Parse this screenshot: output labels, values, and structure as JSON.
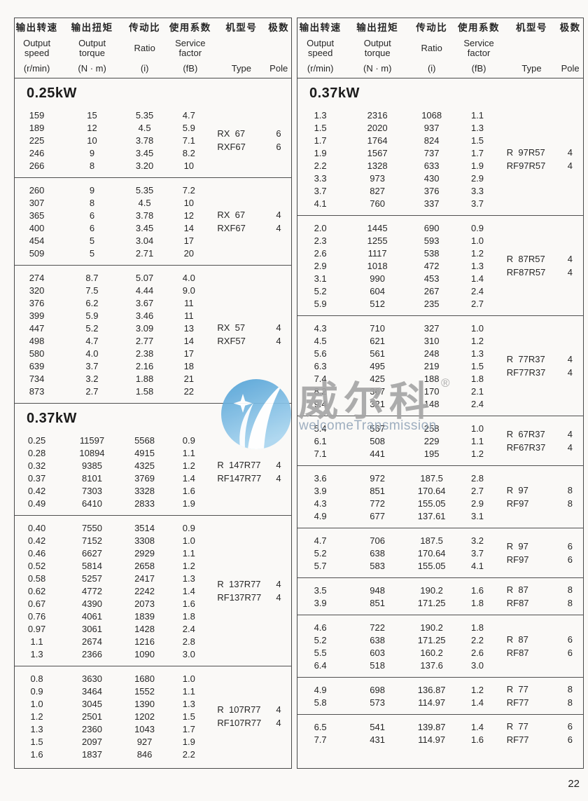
{
  "page_number": "22",
  "watermark": {
    "brand_cn": "威尔科",
    "reg_mark": "®",
    "brand_en": "welcomeTransmission",
    "circle_color_top": "#4d9fd5",
    "circle_color_bottom": "#aad6f0",
    "cn_text_color": "#a6a6a6",
    "en_text_color": "#97a8bb"
  },
  "header": {
    "columns": [
      {
        "cn": "输出转速",
        "en": [
          "Output",
          "speed"
        ],
        "unit": "(r/min)"
      },
      {
        "cn": "输出扭矩",
        "en": [
          "Output",
          "torque"
        ],
        "unit": "(N · m)"
      },
      {
        "cn": "传动比",
        "en": [
          "Ratio"
        ],
        "unit": "(i)"
      },
      {
        "cn": "使用系数",
        "en": [
          "Service",
          "factor"
        ],
        "unit": "(fB)"
      },
      {
        "cn": "机型号",
        "en": [],
        "unit": "Type"
      },
      {
        "cn": "极数",
        "en": [],
        "unit": "Pole"
      }
    ]
  },
  "left_table": {
    "sections": [
      {
        "title": "0.25kW",
        "blocks": [
          {
            "rows": [
              [
                "159",
                "15",
                "5.35",
                "4.7"
              ],
              [
                "189",
                "12",
                "4.5",
                "5.9"
              ],
              [
                "225",
                "10",
                "3.78",
                "7.1"
              ],
              [
                "246",
                "9",
                "3.45",
                "8.2"
              ],
              [
                "266",
                "8",
                "3.20",
                "10"
              ]
            ],
            "types": [
              [
                "RX  67",
                "6"
              ],
              [
                "RXF67",
                "6"
              ]
            ]
          },
          {
            "rows": [
              [
                "260",
                "9",
                "5.35",
                "7.2"
              ],
              [
                "307",
                "8",
                "4.5",
                "10"
              ],
              [
                "365",
                "6",
                "3.78",
                "12"
              ],
              [
                "400",
                "6",
                "3.45",
                "14"
              ],
              [
                "454",
                "5",
                "3.04",
                "17"
              ],
              [
                "509",
                "5",
                "2.71",
                "20"
              ]
            ],
            "types": [
              [
                "RX  67",
                "4"
              ],
              [
                "RXF67",
                "4"
              ]
            ]
          },
          {
            "rows": [
              [
                "274",
                "8.7",
                "5.07",
                "4.0"
              ],
              [
                "320",
                "7.5",
                "4.44",
                "9.0"
              ],
              [
                "376",
                "6.2",
                "3.67",
                "11"
              ],
              [
                "399",
                "5.9",
                "3.46",
                "11"
              ],
              [
                "447",
                "5.2",
                "3.09",
                "13"
              ],
              [
                "498",
                "4.7",
                "2.77",
                "14"
              ],
              [
                "580",
                "4.0",
                "2.38",
                "17"
              ],
              [
                "639",
                "3.7",
                "2.16",
                "18"
              ],
              [
                "734",
                "3.2",
                "1.88",
                "21"
              ],
              [
                "873",
                "2.7",
                "1.58",
                "22"
              ]
            ],
            "types": [
              [
                "RX  57",
                "4"
              ],
              [
                "RXF57",
                "4"
              ]
            ]
          }
        ]
      },
      {
        "title": "0.37kW",
        "blocks": [
          {
            "rows": [
              [
                "0.25",
                "11597",
                "5568",
                "0.9"
              ],
              [
                "0.28",
                "10894",
                "4915",
                "1.1"
              ],
              [
                "0.32",
                "9385",
                "4325",
                "1.2"
              ],
              [
                "0.37",
                "8101",
                "3769",
                "1.4"
              ],
              [
                "0.42",
                "7303",
                "3328",
                "1.6"
              ],
              [
                "0.49",
                "6410",
                "2833",
                "1.9"
              ]
            ],
            "types": [
              [
                "R  147R77",
                "4"
              ],
              [
                "RF147R77",
                "4"
              ]
            ]
          },
          {
            "rows": [
              [
                "0.40",
                "7550",
                "3514",
                "0.9"
              ],
              [
                "0.42",
                "7152",
                "3308",
                "1.0"
              ],
              [
                "0.46",
                "6627",
                "2929",
                "1.1"
              ],
              [
                "0.52",
                "5814",
                "2658",
                "1.2"
              ],
              [
                "0.58",
                "5257",
                "2417",
                "1.3"
              ],
              [
                "0.62",
                "4772",
                "2242",
                "1.4"
              ],
              [
                "0.67",
                "4390",
                "2073",
                "1.6"
              ],
              [
                "0.76",
                "4061",
                "1839",
                "1.8"
              ],
              [
                "0.97",
                "3061",
                "1428",
                "2.4"
              ],
              [
                "1.1",
                "2674",
                "1216",
                "2.8"
              ],
              [
                "1.3",
                "2366",
                "1090",
                "3.0"
              ]
            ],
            "types": [
              [
                "R  137R77",
                "4"
              ],
              [
                "RF137R77",
                "4"
              ]
            ]
          },
          {
            "rows": [
              [
                "0.8",
                "3630",
                "1680",
                "1.0"
              ],
              [
                "0.9",
                "3464",
                "1552",
                "1.1"
              ],
              [
                "1.0",
                "3045",
                "1390",
                "1.3"
              ],
              [
                "1.2",
                "2501",
                "1202",
                "1.5"
              ],
              [
                "1.3",
                "2360",
                "1043",
                "1.7"
              ],
              [
                "1.5",
                "2097",
                "927",
                "1.9"
              ],
              [
                "1.6",
                "1837",
                "846",
                "2.2"
              ]
            ],
            "types": [
              [
                "R  107R77",
                "4"
              ],
              [
                "RF107R77",
                "4"
              ]
            ]
          }
        ]
      }
    ]
  },
  "right_table": {
    "sections": [
      {
        "title": "0.37kW",
        "blocks": [
          {
            "rows": [
              [
                "1.3",
                "2316",
                "1068",
                "1.1"
              ],
              [
                "1.5",
                "2020",
                "937",
                "1.3"
              ],
              [
                "1.7",
                "1764",
                "824",
                "1.5"
              ],
              [
                "1.9",
                "1567",
                "737",
                "1.7"
              ],
              [
                "2.2",
                "1328",
                "633",
                "1.9"
              ],
              [
                "3.3",
                "973",
                "430",
                "2.9"
              ],
              [
                "3.7",
                "827",
                "376",
                "3.3"
              ],
              [
                "4.1",
                "760",
                "337",
                "3.7"
              ]
            ],
            "types": [
              [
                "R  97R57",
                "4"
              ],
              [
                "RF97R57",
                "4"
              ]
            ]
          },
          {
            "rows": [
              [
                "2.0",
                "1445",
                "690",
                "0.9"
              ],
              [
                "2.3",
                "1255",
                "593",
                "1.0"
              ],
              [
                "2.6",
                "1117",
                "538",
                "1.2"
              ],
              [
                "2.9",
                "1018",
                "472",
                "1.3"
              ],
              [
                "3.1",
                "990",
                "453",
                "1.4"
              ],
              [
                "5.2",
                "604",
                "267",
                "2.4"
              ],
              [
                "5.9",
                "512",
                "235",
                "2.7"
              ]
            ],
            "types": [
              [
                "R  87R57",
                "4"
              ],
              [
                "RF87R57",
                "4"
              ]
            ]
          },
          {
            "rows": [
              [
                "4.3",
                "710",
                "327",
                "1.0"
              ],
              [
                "4.5",
                "621",
                "310",
                "1.2"
              ],
              [
                "5.6",
                "561",
                "248",
                "1.3"
              ],
              [
                "6.3",
                "495",
                "219",
                "1.5"
              ],
              [
                "7.4",
                "425",
                "188",
                "1.8"
              ],
              [
                "8.2",
                "367",
                "170",
                "2.1"
              ],
              [
                "9.4",
                "321",
                "148",
                "2.4"
              ]
            ],
            "types": [
              [
                "R  77R37",
                "4"
              ],
              [
                "RF77R37",
                "4"
              ]
            ]
          },
          {
            "rows": [
              [
                "5.4",
                "567",
                "258",
                "1.0"
              ],
              [
                "6.1",
                "508",
                "229",
                "1.1"
              ],
              [
                "7.1",
                "441",
                "195",
                "1.2"
              ]
            ],
            "types": [
              [
                "R  67R37",
                "4"
              ],
              [
                "RF67R37",
                "4"
              ]
            ]
          },
          {
            "rows": [
              [
                "3.6",
                "972",
                "187.5",
                "2.8"
              ],
              [
                "3.9",
                "851",
                "170.64",
                "2.7"
              ],
              [
                "4.3",
                "772",
                "155.05",
                "2.9"
              ],
              [
                "4.9",
                "677",
                "137.61",
                "3.1"
              ]
            ],
            "types": [
              [
                "R  97",
                "8"
              ],
              [
                "RF97",
                "8"
              ]
            ]
          },
          {
            "rows": [
              [
                "4.7",
                "706",
                "187.5",
                "3.2"
              ],
              [
                "5.2",
                "638",
                "170.64",
                "3.7"
              ],
              [
                "5.7",
                "583",
                "155.05",
                "4.1"
              ]
            ],
            "types": [
              [
                "R  97",
                "6"
              ],
              [
                "RF97",
                "6"
              ]
            ]
          },
          {
            "rows": [
              [
                "3.5",
                "948",
                "190.2",
                "1.6"
              ],
              [
                "3.9",
                "851",
                "171.25",
                "1.8"
              ]
            ],
            "types": [
              [
                "R  87",
                "8"
              ],
              [
                "RF87",
                "8"
              ]
            ]
          },
          {
            "rows": [
              [
                "4.6",
                "722",
                "190.2",
                "1.8"
              ],
              [
                "5.2",
                "638",
                "171.25",
                "2.2"
              ],
              [
                "5.5",
                "603",
                "160.2",
                "2.6"
              ],
              [
                "6.4",
                "518",
                "137.6",
                "3.0"
              ]
            ],
            "types": [
              [
                "R  87",
                "6"
              ],
              [
                "RF87",
                "6"
              ]
            ]
          },
          {
            "rows": [
              [
                "4.9",
                "698",
                "136.87",
                "1.2"
              ],
              [
                "5.8",
                "573",
                "114.97",
                "1.4"
              ]
            ],
            "types": [
              [
                "R  77",
                "8"
              ],
              [
                "RF77",
                "8"
              ]
            ]
          },
          {
            "rows": [
              [
                "6.5",
                "541",
                "139.87",
                "1.4"
              ],
              [
                "7.7",
                "431",
                "114.97",
                "1.6"
              ]
            ],
            "types": [
              [
                "R  77",
                "6"
              ],
              [
                "RF77",
                "6"
              ]
            ]
          }
        ]
      }
    ]
  }
}
